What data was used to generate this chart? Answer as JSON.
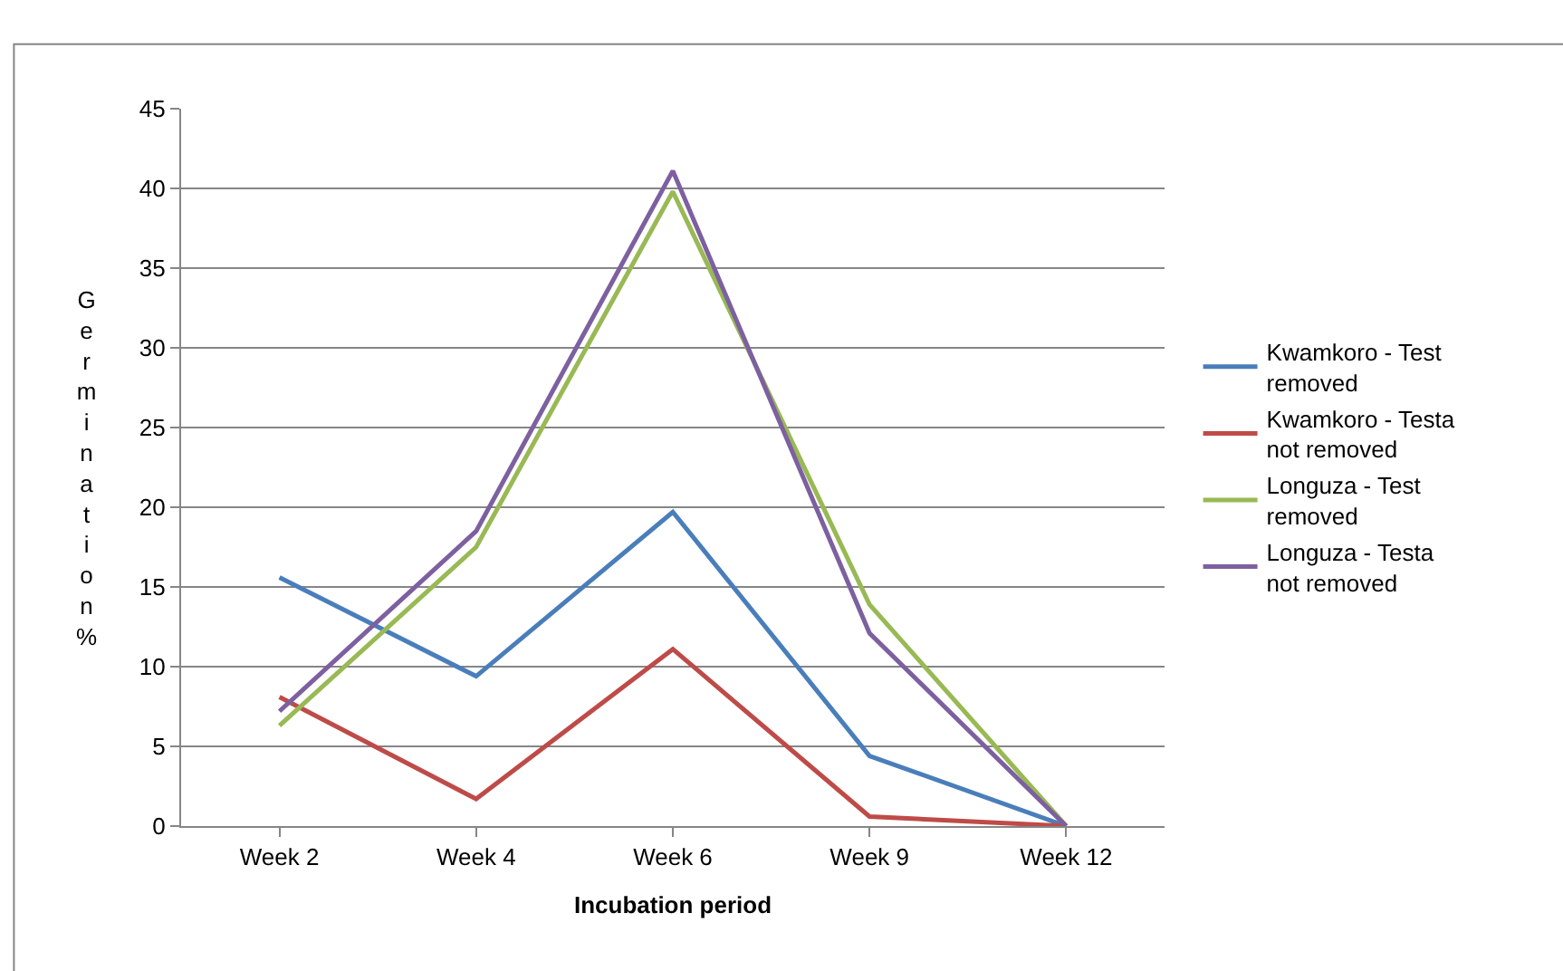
{
  "chart_data": {
    "type": "line",
    "xlabel": "Incubation period",
    "ylabel": "Germination %",
    "categories": [
      "Week 2",
      "Week 4",
      "Week 6",
      "Week 9",
      "Week 12"
    ],
    "series": [
      {
        "name": "Kwamkoro - Test removed",
        "color": "#4a7ebb",
        "values": [
          15.6,
          9.4,
          19.7,
          4.4,
          0
        ]
      },
      {
        "name": "Kwamkoro - Testa not removed",
        "color": "#be4b48",
        "values": [
          8.1,
          1.7,
          11.1,
          0.6,
          0
        ]
      },
      {
        "name": "Longuza - Test removed",
        "color": "#98b954",
        "values": [
          6.3,
          17.5,
          39.8,
          13.9,
          0
        ]
      },
      {
        "name": "Longuza - Testa not removed",
        "color": "#7d60a0",
        "values": [
          7.2,
          18.5,
          41.1,
          12.1,
          0
        ]
      }
    ],
    "ylim": [
      0,
      45
    ],
    "yticks": [
      0,
      5,
      10,
      15,
      20,
      25,
      30,
      35,
      40,
      45
    ],
    "grid": "y",
    "legend": "right",
    "marker": "none",
    "line_style": "solid"
  }
}
